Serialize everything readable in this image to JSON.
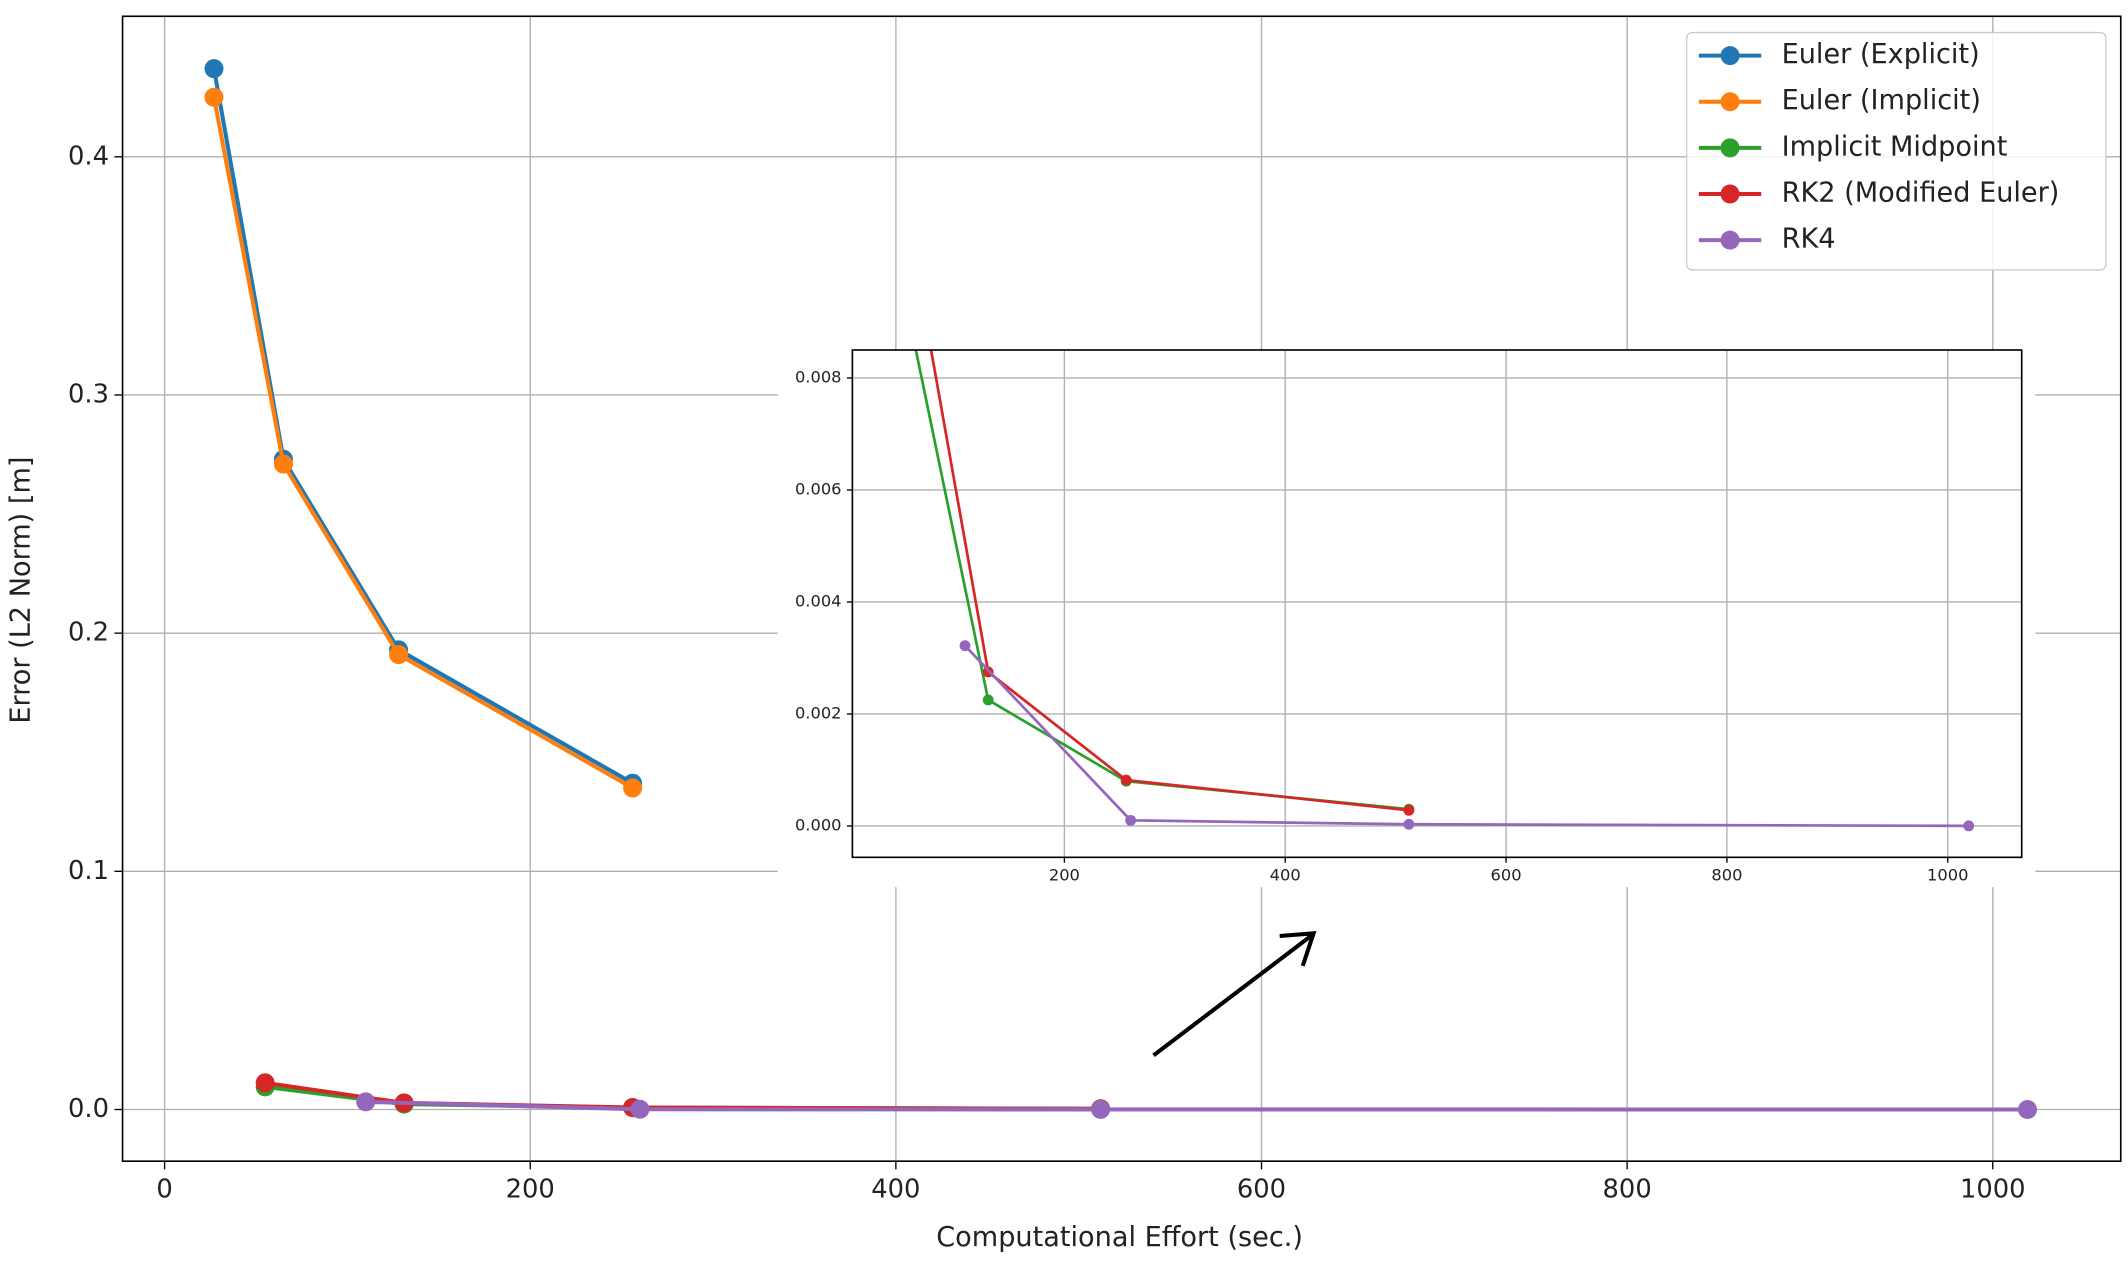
{
  "chart_data": {
    "type": "line",
    "xlabel": "Computational Effort (sec.)",
    "ylabel": "Error (L2 Norm) [m]",
    "xlim": [
      -23,
      1070
    ],
    "ylim": [
      -0.0217,
      0.459
    ],
    "xticks": [
      0,
      200,
      400,
      600,
      800,
      1000
    ],
    "yticks": [
      {
        "value": 0,
        "label": "0.0"
      },
      {
        "value": 0.1,
        "label": "0.1"
      },
      {
        "value": 0.2,
        "label": "0.2"
      },
      {
        "value": 0.3,
        "label": "0.3"
      },
      {
        "value": 0.4,
        "label": "0.4"
      }
    ],
    "grid": true,
    "legend": "upper right",
    "series": [
      {
        "name": "Euler (Explicit)",
        "color": "#1f77b4",
        "x": [
          27,
          65,
          128,
          256
        ],
        "values": [
          0.437,
          0.273,
          0.193,
          0.137
        ]
      },
      {
        "name": "Euler (Implicit)",
        "color": "#ff7f0e",
        "x": [
          27,
          65,
          128,
          256
        ],
        "values": [
          0.425,
          0.271,
          0.191,
          0.135
        ]
      },
      {
        "name": "Implicit Midpoint",
        "color": "#2ca02c",
        "x": [
          55,
          131,
          256,
          512
        ],
        "values": [
          0.0095,
          0.00225,
          0.0008,
          0.0003
        ]
      },
      {
        "name": "RK2 (Modified Euler)",
        "color": "#d62728",
        "x": [
          55,
          131,
          256,
          512
        ],
        "values": [
          0.0112,
          0.00275,
          0.00082,
          0.00028
        ]
      },
      {
        "name": "RK4",
        "color": "#9467bd",
        "x": [
          110,
          260,
          512,
          1019
        ],
        "values": [
          0.00322,
          0.0001,
          3e-05,
          2e-06
        ]
      }
    ],
    "inset": {
      "xlim": [
        8,
        1067
      ],
      "ylim": [
        -0.00056,
        0.0085
      ],
      "xticks": [
        200,
        400,
        600,
        800,
        1000
      ],
      "yticks": [
        {
          "value": 0,
          "label": "0.000"
        },
        {
          "value": 0.002,
          "label": "0.002"
        },
        {
          "value": 0.004,
          "label": "0.004"
        },
        {
          "value": 0.006,
          "label": "0.006"
        },
        {
          "value": 0.008,
          "label": "0.008"
        }
      ]
    }
  }
}
